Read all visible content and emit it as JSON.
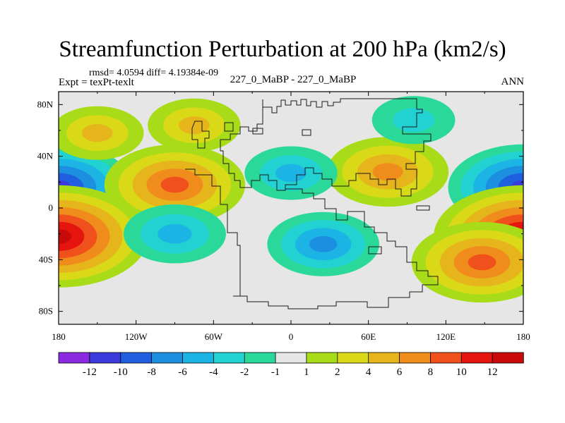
{
  "title": "Streamfunction Perturbation at 200 hPa (km2/s)",
  "stats": "rmsd= 4.0594 diff= 4.19384e-09",
  "left_label": "Expt = texPt-texlt",
  "center_label": "227_0_MaBP - 227_0_MaBP",
  "right_label": "ANN",
  "chart_data": {
    "type": "heatmap",
    "title": "Streamfunction Perturbation at 200 hPa (km2/s)",
    "xlabel": "",
    "ylabel": "",
    "xlim": [
      -180,
      180
    ],
    "ylim": [
      -90,
      90
    ],
    "x_ticks": [
      {
        "value": -180,
        "label": "180"
      },
      {
        "value": -120,
        "label": "120W"
      },
      {
        "value": -60,
        "label": "60W"
      },
      {
        "value": 0,
        "label": "0"
      },
      {
        "value": 60,
        "label": "60E"
      },
      {
        "value": 120,
        "label": "120E"
      },
      {
        "value": 180,
        "label": "180"
      }
    ],
    "y_ticks": [
      {
        "value": 80,
        "label": "80N"
      },
      {
        "value": 40,
        "label": "40N"
      },
      {
        "value": 0,
        "label": "0"
      },
      {
        "value": -40,
        "label": "40S"
      },
      {
        "value": -80,
        "label": "80S"
      }
    ],
    "contour_levels": [
      -12,
      -10,
      -8,
      -6,
      -4,
      -2,
      -1,
      1,
      2,
      4,
      6,
      8,
      10,
      12
    ],
    "colorbar_labels": [
      "-12",
      "-10",
      "-8",
      "-6",
      "-4",
      "-2",
      "-1",
      "1",
      "2",
      "4",
      "6",
      "8",
      "10",
      "12"
    ],
    "colorbar_colors": [
      "#8a2be2",
      "#3b3bdc",
      "#1f5fe0",
      "#1c8fe0",
      "#1cb4e4",
      "#22d2d2",
      "#2ad999",
      "#e6e6e6",
      "#a8dc19",
      "#d9d918",
      "#e6b51c",
      "#f08c1c",
      "#f0501c",
      "#e6140f",
      "#c80a0a"
    ],
    "field_features": [
      {
        "lon": -180,
        "lat": 16,
        "value": -10
      },
      {
        "lon": 180,
        "lat": 16,
        "value": -10
      },
      {
        "lon": -180,
        "lat": -22,
        "value": 13
      },
      {
        "lon": 180,
        "lat": -22,
        "value": 13
      },
      {
        "lon": -90,
        "lat": 18,
        "value": 9
      },
      {
        "lon": 75,
        "lat": 28,
        "value": 7
      },
      {
        "lon": 148,
        "lat": -42,
        "value": 9
      },
      {
        "lon": -150,
        "lat": 58,
        "value": 4
      },
      {
        "lon": -75,
        "lat": 64,
        "value": 4
      },
      {
        "lon": 25,
        "lat": -28,
        "value": -6
      },
      {
        "lon": -90,
        "lat": -20,
        "value": -5
      },
      {
        "lon": 95,
        "lat": 68,
        "value": -3
      },
      {
        "lon": 0,
        "lat": 27,
        "value": -4
      }
    ]
  }
}
